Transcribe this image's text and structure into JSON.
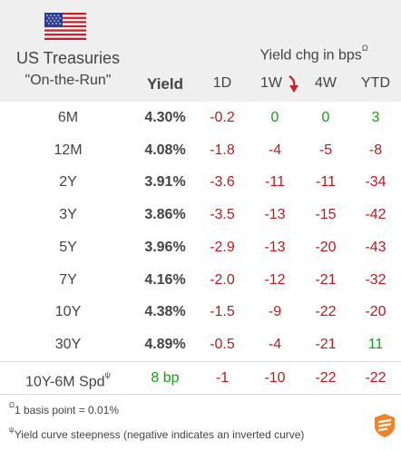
{
  "header": {
    "title_line1": "US Treasuries",
    "title_line2": "\"On-the-Run\"",
    "yield_label": "Yield",
    "chg_title": "Yield chg in bps",
    "chg_title_sup": "Ω",
    "columns": [
      "1D",
      "1W",
      "4W",
      "YTD"
    ],
    "flag_icon": "us-flag-icon",
    "arrow_icon": "red-down-arrow-icon"
  },
  "rows": [
    {
      "tenor": "6M",
      "yield": "4.30%",
      "d1": "-0.2",
      "w1": "0",
      "w4": "0",
      "ytd": "3"
    },
    {
      "tenor": "12M",
      "yield": "4.08%",
      "d1": "-1.8",
      "w1": "-4",
      "w4": "-5",
      "ytd": "-8"
    },
    {
      "tenor": "2Y",
      "yield": "3.91%",
      "d1": "-3.6",
      "w1": "-11",
      "w4": "-11",
      "ytd": "-34"
    },
    {
      "tenor": "3Y",
      "yield": "3.86%",
      "d1": "-3.5",
      "w1": "-13",
      "w4": "-15",
      "ytd": "-42"
    },
    {
      "tenor": "5Y",
      "yield": "3.96%",
      "d1": "-2.9",
      "w1": "-13",
      "w4": "-20",
      "ytd": "-43"
    },
    {
      "tenor": "7Y",
      "yield": "4.16%",
      "d1": "-2.0",
      "w1": "-12",
      "w4": "-21",
      "ytd": "-32"
    },
    {
      "tenor": "10Y",
      "yield": "4.38%",
      "d1": "-1.5",
      "w1": "-9",
      "w4": "-22",
      "ytd": "-20"
    },
    {
      "tenor": "30Y",
      "yield": "4.89%",
      "d1": "-0.5",
      "w1": "-4",
      "w4": "-21",
      "ytd": "11"
    }
  ],
  "spread": {
    "label": "10Y-6M Spd",
    "label_sup": "ψ",
    "yield": "8 bp",
    "d1": "-1",
    "w1": "-10",
    "w4": "-22",
    "ytd": "-22"
  },
  "notes": {
    "note1_sup": "Ω",
    "note1": "1 basis point = 0.01%",
    "note2_sup": "ψ",
    "note2": "Yield curve steepness (negative indicates an inverted curve)"
  },
  "colors": {
    "negative": "#b41c24",
    "positive": "#1a9a1a",
    "header_bg": "#efefef"
  },
  "logo_icon": "brand-logo-icon"
}
